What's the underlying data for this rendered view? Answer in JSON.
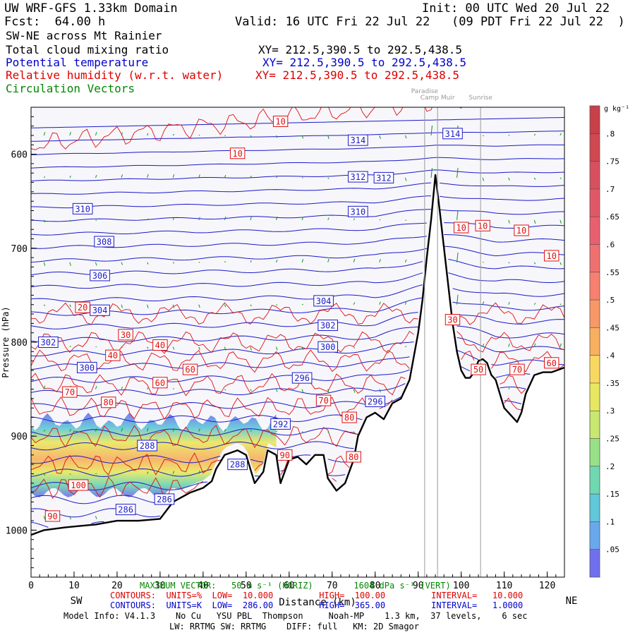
{
  "header": {
    "title": "UW WRF-GFS 1.33km Domain",
    "init": "Init: 00 UTC Wed 20 Jul 22",
    "fcst": "Fcst:  64.00 h",
    "valid": "Valid: 16 UTC Fri 22 Jul 22   (09 PDT Fri 22 Jul 22  )",
    "section": "SW-NE across Mt Rainier",
    "fields": [
      {
        "name": "Total cloud mixing ratio",
        "xy": "XY= 212.5,390.5 to 292.5,438.5",
        "color": "#000000"
      },
      {
        "name": "Potential temperature",
        "xy": "XY= 212.5,390.5 to 292.5,438.5",
        "color": "#0000cc"
      },
      {
        "name": "Relative humidity (w.r.t. water)",
        "xy": "XY= 212.5,390.5 to 292.5,438.5",
        "color": "#dd0000"
      },
      {
        "name": "Circulation Vectors",
        "xy": "",
        "color": "#008800"
      }
    ]
  },
  "chart_data": {
    "type": "cross-section",
    "xlabel": "Distance (km)",
    "ylabel": "Pressure (hPa)",
    "xlim": [
      0,
      124
    ],
    "ylim": [
      1050,
      550
    ],
    "x_ticks": [
      0,
      10,
      20,
      30,
      40,
      50,
      60,
      70,
      80,
      90,
      100,
      110,
      120
    ],
    "x_tick_labels": [
      "0",
      "10",
      "20",
      "30",
      "40",
      "50",
      "60",
      "70",
      "80",
      "90",
      "100",
      "110",
      "120"
    ],
    "y_ticks": [
      600,
      700,
      800,
      900,
      1000
    ],
    "y_tick_labels": [
      "600",
      "700",
      "800",
      "900",
      "1000"
    ],
    "sw_label": "SW",
    "ne_label": "NE",
    "landmarks": [
      {
        "name": "Paradise",
        "x": 91.5
      },
      {
        "name": "Camp Muir",
        "x": 94.5
      },
      {
        "name": "Sunrise",
        "x": 104.5
      }
    ],
    "terrain_pressure": [
      [
        0,
        1005
      ],
      [
        3,
        1000
      ],
      [
        8,
        997
      ],
      [
        15,
        994
      ],
      [
        20,
        990
      ],
      [
        25,
        990
      ],
      [
        30,
        988
      ],
      [
        33,
        970
      ],
      [
        37,
        960
      ],
      [
        40,
        955
      ],
      [
        42,
        948
      ],
      [
        43,
        935
      ],
      [
        45,
        920
      ],
      [
        48,
        915
      ],
      [
        50,
        920
      ],
      [
        52,
        950
      ],
      [
        54,
        938
      ],
      [
        55,
        915
      ],
      [
        57,
        920
      ],
      [
        58,
        950
      ],
      [
        60,
        925
      ],
      [
        62,
        922
      ],
      [
        64,
        930
      ],
      [
        66,
        920
      ],
      [
        68,
        920
      ],
      [
        69,
        945
      ],
      [
        71,
        958
      ],
      [
        73,
        950
      ],
      [
        75,
        925
      ],
      [
        76,
        900
      ],
      [
        78,
        880
      ],
      [
        80,
        875
      ],
      [
        82,
        882
      ],
      [
        84,
        865
      ],
      [
        86,
        860
      ],
      [
        88,
        840
      ],
      [
        90,
        790
      ],
      [
        91,
        755
      ],
      [
        92,
        710
      ],
      [
        93,
        670
      ],
      [
        94,
        622
      ],
      [
        95,
        660
      ],
      [
        96,
        700
      ],
      [
        97,
        740
      ],
      [
        98,
        780
      ],
      [
        99,
        810
      ],
      [
        100,
        830
      ],
      [
        101,
        838
      ],
      [
        102,
        838
      ],
      [
        103,
        832
      ],
      [
        104,
        820
      ],
      [
        105,
        818
      ],
      [
        106,
        822
      ],
      [
        107,
        835
      ],
      [
        108,
        840
      ],
      [
        109,
        855
      ],
      [
        110,
        870
      ],
      [
        112,
        880
      ],
      [
        113,
        885
      ],
      [
        114,
        875
      ],
      [
        115,
        855
      ],
      [
        117,
        835
      ],
      [
        119,
        832
      ],
      [
        121,
        832
      ],
      [
        124,
        827
      ]
    ],
    "theta_contours": {
      "units": "K",
      "low": 286,
      "high": 365,
      "interval": 1,
      "labels": [
        {
          "text": "314",
          "x": 76,
          "p": 585
        },
        {
          "text": "314",
          "x": 98,
          "p": 578
        },
        {
          "text": "312",
          "x": 76,
          "p": 624
        },
        {
          "text": "312",
          "x": 82,
          "p": 625
        },
        {
          "text": "310",
          "x": 12,
          "p": 658
        },
        {
          "text": "310",
          "x": 76,
          "p": 661
        },
        {
          "text": "308",
          "x": 17,
          "p": 693
        },
        {
          "text": "306",
          "x": 16,
          "p": 729
        },
        {
          "text": "304",
          "x": 16,
          "p": 766
        },
        {
          "text": "304",
          "x": 68,
          "p": 756
        },
        {
          "text": "302",
          "x": 4,
          "p": 800
        },
        {
          "text": "302",
          "x": 69,
          "p": 782
        },
        {
          "text": "300",
          "x": 13,
          "p": 827
        },
        {
          "text": "300",
          "x": 69,
          "p": 805
        },
        {
          "text": "296",
          "x": 63,
          "p": 838
        },
        {
          "text": "296",
          "x": 80,
          "p": 863
        },
        {
          "text": "292",
          "x": 58,
          "p": 887
        },
        {
          "text": "288",
          "x": 27,
          "p": 910
        },
        {
          "text": "288",
          "x": 48,
          "p": 930
        },
        {
          "text": "286",
          "x": 31,
          "p": 967
        },
        {
          "text": "286",
          "x": 22,
          "p": 978
        }
      ]
    },
    "rh_contours": {
      "units": "%",
      "low": 10,
      "high": 100,
      "interval": 10,
      "labels": [
        {
          "text": "10",
          "x": 58,
          "p": 565
        },
        {
          "text": "10",
          "x": 48,
          "p": 599
        },
        {
          "text": "10",
          "x": 100,
          "p": 678
        },
        {
          "text": "10",
          "x": 105,
          "p": 676
        },
        {
          "text": "10",
          "x": 114,
          "p": 681
        },
        {
          "text": "10",
          "x": 121,
          "p": 708
        },
        {
          "text": "20",
          "x": 12,
          "p": 763
        },
        {
          "text": "30",
          "x": 22,
          "p": 792
        },
        {
          "text": "30",
          "x": 98,
          "p": 776
        },
        {
          "text": "40",
          "x": 30,
          "p": 803
        },
        {
          "text": "40",
          "x": 19,
          "p": 814
        },
        {
          "text": "60",
          "x": 37,
          "p": 829
        },
        {
          "text": "60",
          "x": 30,
          "p": 843
        },
        {
          "text": "50",
          "x": 104,
          "p": 829
        },
        {
          "text": "70",
          "x": 113,
          "p": 829
        },
        {
          "text": "60",
          "x": 121,
          "p": 822
        },
        {
          "text": "70",
          "x": 9,
          "p": 853
        },
        {
          "text": "70",
          "x": 68,
          "p": 862
        },
        {
          "text": "80",
          "x": 18,
          "p": 864
        },
        {
          "text": "80",
          "x": 74,
          "p": 880
        },
        {
          "text": "90",
          "x": 59,
          "p": 920
        },
        {
          "text": "80",
          "x": 75,
          "p": 922
        },
        {
          "text": "100",
          "x": 11,
          "p": 952
        },
        {
          "text": "90",
          "x": 5,
          "p": 985
        }
      ]
    },
    "cloud_colorbar": {
      "units": "g kg⁻¹",
      "levels": [
        ".05",
        ".1",
        ".15",
        ".2",
        ".25",
        ".3",
        ".35",
        ".4",
        ".45",
        ".5",
        ".55",
        ".6",
        ".65",
        ".7",
        ".75",
        ".8"
      ],
      "colors": [
        "#7070ee",
        "#6aa8ee",
        "#60c8d8",
        "#70d8b0",
        "#98e088",
        "#c8e870",
        "#e8e860",
        "#f8d860",
        "#f8b060",
        "#f89868",
        "#f88070",
        "#f07070",
        "#e86070",
        "#e05868",
        "#d85060",
        "#d04850",
        "#c84048"
      ]
    },
    "cloud_layer": {
      "x_from": 0,
      "x_to": 57,
      "p_top": 885,
      "p_bottom": 960,
      "max_value": 0.35
    }
  },
  "footer": {
    "max_vector": "MAXIMUM VECTOR:   50 m s⁻¹ (HORIZ)        1604 dPa s⁻¹ (VERT)",
    "contours_rh": "CONTOURS:  UNITS=%  LOW=  10.000         HIGH=  100.00         INTERVAL=   10.000",
    "contours_theta": "CONTOURS:  UNITS=K  LOW=  286.00         HIGH=  365.00         INTERVAL=   1.0000",
    "model_info": "Model Info: V4.1.3    No Cu   YSU PBL  Thompson     Noah-MP    1.3 km,  37 levels,    6 sec",
    "schemes": "LW: RRTMG SW: RRTMG    DIFF: full   KM: 2D Smagor"
  }
}
